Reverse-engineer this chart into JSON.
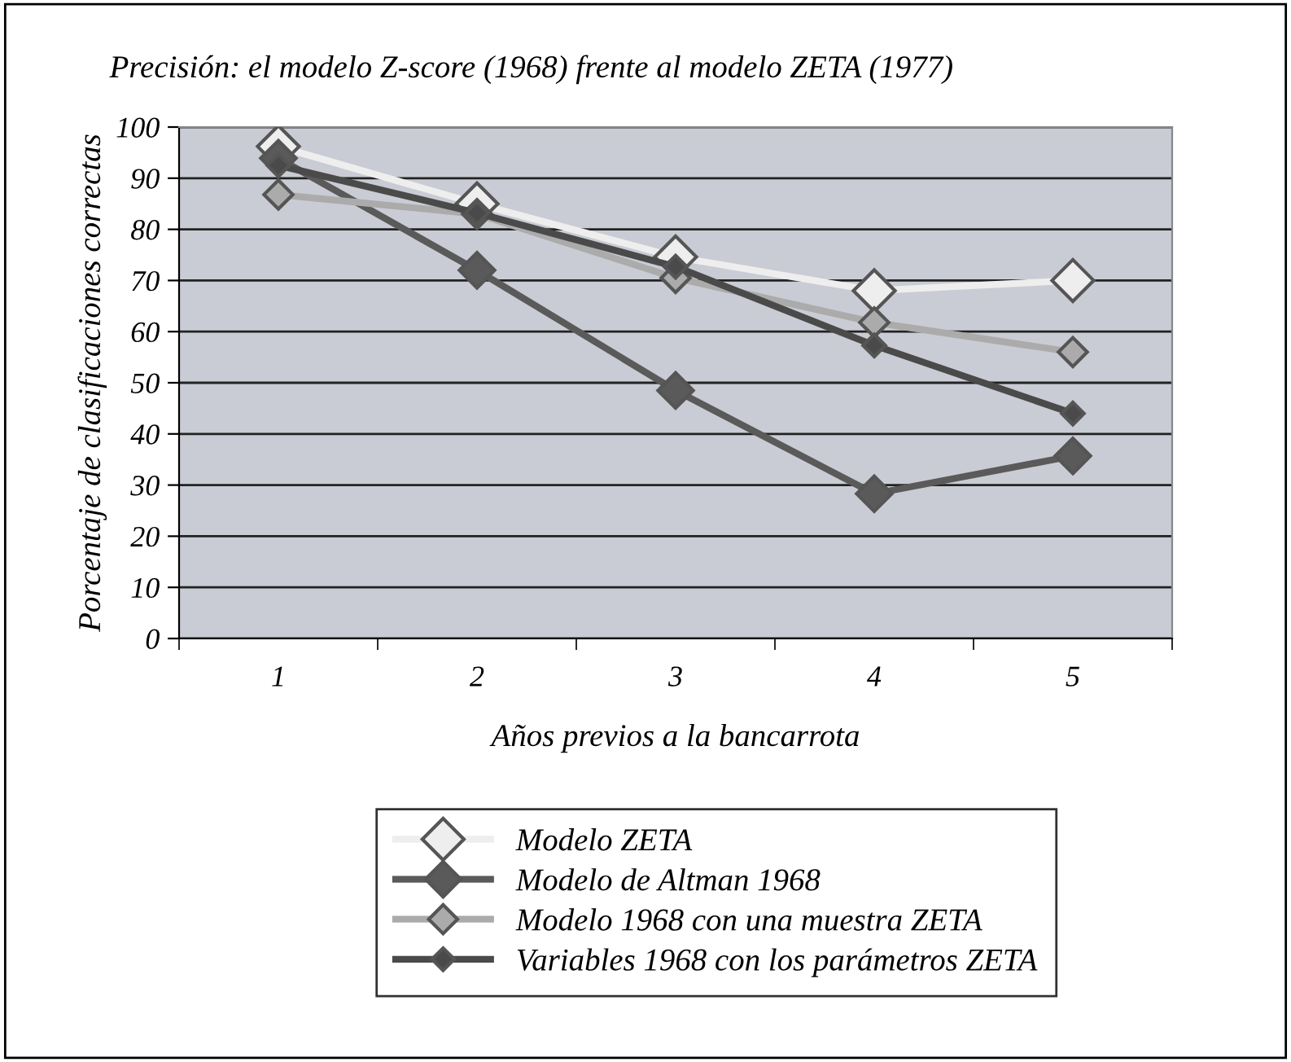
{
  "chart_data": {
    "type": "line",
    "title": "Precisión: el modelo Z-score (1968) frente al modelo ZETA (1977)",
    "xlabel": "Años previos a la bancarrota",
    "ylabel": "Porcentaje de clasificaciones correctas",
    "categories": [
      "1",
      "2",
      "3",
      "4",
      "5"
    ],
    "series": [
      {
        "name": "Modelo ZETA",
        "color": "#eeeeee",
        "values": [
          96.2,
          85,
          74.6,
          68,
          70
        ]
      },
      {
        "name": "Modelo de Altman 1968",
        "color": "#5a5a5a",
        "values": [
          93.9,
          72,
          48.5,
          28.3,
          35.7
        ]
      },
      {
        "name": "Modelo 1968 con una muestra ZETA",
        "color": "#ababab",
        "values": [
          86.8,
          83,
          70.5,
          61.8,
          56
        ]
      },
      {
        "name": "Variables 1968 con los parámetros ZETA",
        "color": "#4a4a4a",
        "values": [
          92.5,
          83.2,
          72.7,
          57.3,
          44
        ]
      }
    ],
    "ylim": [
      0,
      100
    ],
    "yticks": [
      0,
      10,
      20,
      30,
      40,
      50,
      60,
      70,
      80,
      90,
      100
    ],
    "grid": "y",
    "legend": "bottom",
    "marker": "diamond",
    "line_style": "solid"
  }
}
